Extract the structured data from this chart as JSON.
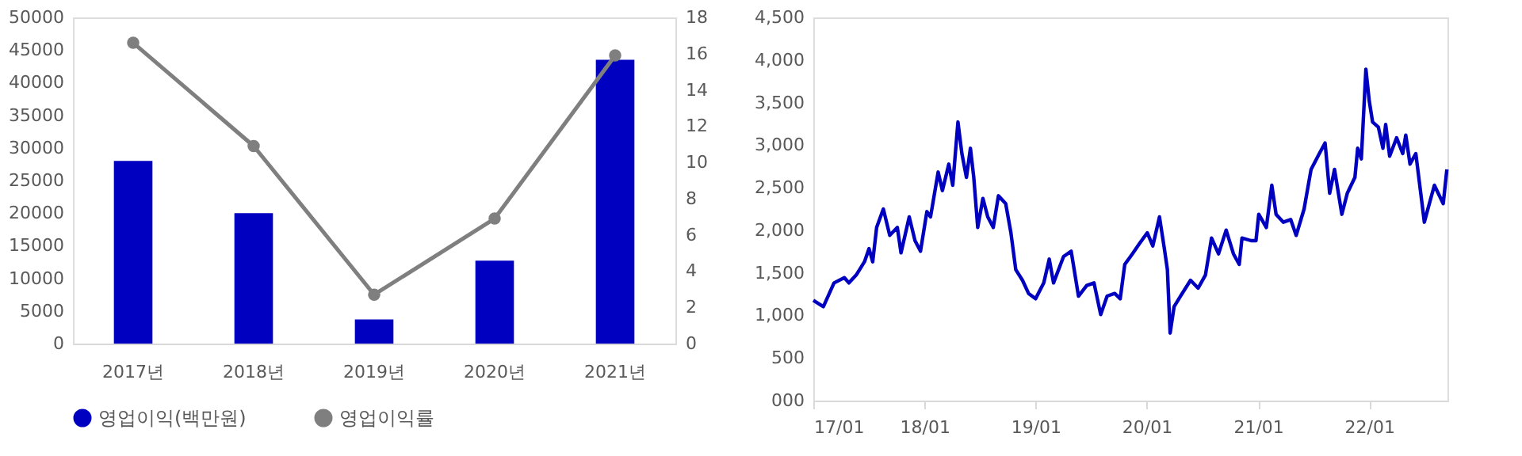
{
  "chart_data": [
    {
      "type": "bar",
      "categories": [
        "2017년",
        "2018년",
        "2019년",
        "2020년",
        "2021년"
      ],
      "series": [
        {
          "name": "영업이익(백만원)",
          "type": "bar",
          "color": "#0000c0",
          "values": [
            28000,
            20000,
            3700,
            12700,
            43500
          ]
        },
        {
          "name": "영업이익률",
          "type": "line",
          "axis": "y2",
          "color": "#7f7f7f",
          "values": [
            16.6,
            10.9,
            2.7,
            6.9,
            15.9
          ]
        }
      ],
      "ylim": [
        0,
        50000
      ],
      "yticks": [
        0,
        5000,
        10000,
        15000,
        20000,
        25000,
        30000,
        35000,
        40000,
        45000,
        50000
      ],
      "y2lim": [
        0,
        18
      ],
      "y2ticks": [
        0,
        2,
        4,
        6,
        8,
        10,
        12,
        14,
        16,
        18
      ],
      "marker": "circle",
      "grid": false,
      "legend": "bottom"
    },
    {
      "type": "line",
      "x": [
        "2017-01-01",
        "2017-02-03",
        "2017-03-10",
        "2017-04-13",
        "2017-04-28",
        "2017-05-22",
        "2017-06-18",
        "2017-07-03",
        "2017-07-15",
        "2017-07-28",
        "2017-08-19",
        "2017-09-09",
        "2017-10-04",
        "2017-10-16",
        "2017-11-12",
        "2017-12-01",
        "2017-12-19",
        "2018-01-09",
        "2018-01-21",
        "2018-02-15",
        "2018-03-01",
        "2018-03-22",
        "2018-04-04",
        "2018-04-21",
        "2018-05-04",
        "2018-05-19",
        "2018-06-01",
        "2018-06-12",
        "2018-06-25",
        "2018-07-12",
        "2018-07-28",
        "2018-08-15",
        "2018-09-01",
        "2018-09-25",
        "2018-10-12",
        "2018-10-28",
        "2018-11-19",
        "2018-12-09",
        "2019-01-01",
        "2019-01-28",
        "2019-02-15",
        "2019-03-01",
        "2019-04-03",
        "2019-04-28",
        "2019-05-22",
        "2019-06-18",
        "2019-07-12",
        "2019-08-03",
        "2019-08-24",
        "2019-09-18",
        "2019-10-06",
        "2019-10-21",
        "2019-11-15",
        "2019-12-09",
        "2020-01-03",
        "2020-01-21",
        "2020-02-12",
        "2020-02-28",
        "2020-03-09",
        "2020-03-18",
        "2020-03-31",
        "2020-04-21",
        "2020-05-24",
        "2020-06-18",
        "2020-07-12",
        "2020-08-01",
        "2020-08-24",
        "2020-09-18",
        "2020-10-12",
        "2020-10-31",
        "2020-11-09",
        "2020-12-09",
        "2020-12-25",
        "2021-01-03",
        "2021-01-28",
        "2021-02-15",
        "2021-03-01",
        "2021-03-25",
        "2021-04-18",
        "2021-05-06",
        "2021-06-01",
        "2021-06-24",
        "2021-07-21",
        "2021-08-09",
        "2021-08-24",
        "2021-09-09",
        "2021-10-03",
        "2021-10-21",
        "2021-11-15",
        "2021-11-24",
        "2021-12-06",
        "2021-12-21",
        "2022-01-01",
        "2022-01-12",
        "2022-01-31",
        "2022-02-15",
        "2022-02-24",
        "2022-03-09",
        "2022-04-01",
        "2022-04-21",
        "2022-05-01",
        "2022-05-15",
        "2022-06-03",
        "2022-07-01",
        "2022-07-15",
        "2022-08-03",
        "2022-09-01",
        "2022-09-13"
      ],
      "series": [
        {
          "color": "#0000c0",
          "values": [
            1178,
            1103,
            1382,
            1444,
            1382,
            1475,
            1630,
            1785,
            1630,
            2033,
            2250,
            1940,
            2033,
            1735,
            2157,
            1878,
            1754,
            2219,
            2157,
            2684,
            2467,
            2777,
            2529,
            3272,
            2901,
            2622,
            2963,
            2622,
            2033,
            2374,
            2157,
            2033,
            2405,
            2312,
            1971,
            1537,
            1413,
            1258,
            1196,
            1382,
            1661,
            1382,
            1692,
            1754,
            1227,
            1351,
            1382,
            1010,
            1227,
            1258,
            1196,
            1599,
            1723,
            1847,
            1971,
            1816,
            2157,
            1785,
            1537,
            793,
            1103,
            1227,
            1413,
            1320,
            1475,
            1909,
            1723,
            2002,
            1723,
            1599,
            1909,
            1878,
            1878,
            2188,
            2033,
            2529,
            2188,
            2095,
            2126,
            1940,
            2250,
            2715,
            2901,
            3025,
            2436,
            2715,
            2188,
            2436,
            2622,
            2963,
            2839,
            3892,
            3520,
            3272,
            3211,
            2963,
            3242,
            2870,
            3087,
            2901,
            3118,
            2777,
            2901,
            2095,
            2281,
            2529,
            2312,
            2715
          ]
        }
      ],
      "xlim": [
        "2017-01-01",
        "2022-09-15"
      ],
      "xticks": [
        {
          "value": "2017-01-01",
          "label": "17/01"
        },
        {
          "value": "2018-01-01",
          "label": "18/01"
        },
        {
          "value": "2019-01-01",
          "label": "19/01"
        },
        {
          "value": "2020-01-01",
          "label": "20/01"
        },
        {
          "value": "2021-01-01",
          "label": "21/01"
        },
        {
          "value": "2022-01-01",
          "label": "22/01"
        }
      ],
      "ylim": [
        0,
        4500
      ],
      "yticks": [
        {
          "value": 0,
          "label": "000"
        },
        500,
        {
          "value": 1000,
          "label": "1,000"
        },
        {
          "value": 1500,
          "label": "1,500"
        },
        {
          "value": 2000,
          "label": "2,000"
        },
        {
          "value": 2500,
          "label": "2,500"
        },
        {
          "value": 3000,
          "label": "3,000"
        },
        {
          "value": 3500,
          "label": "3,500"
        },
        {
          "value": 4000,
          "label": "4,000"
        },
        {
          "value": 4500,
          "label": "4,500"
        }
      ],
      "grid": false
    }
  ]
}
